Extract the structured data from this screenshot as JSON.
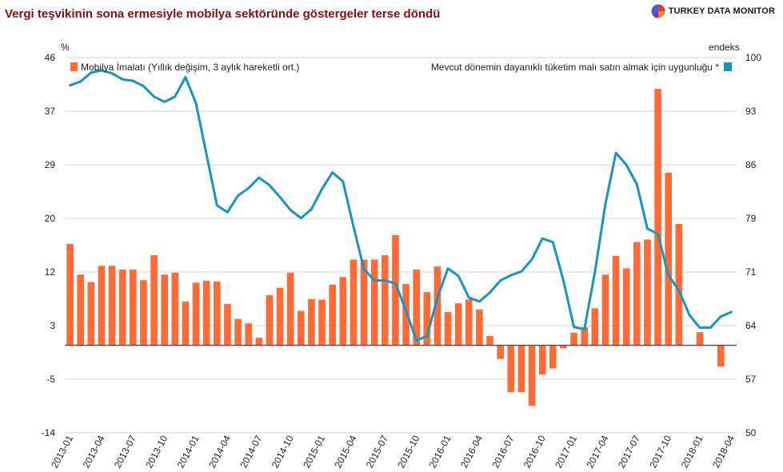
{
  "header": {
    "title": "Vergi teşvikinin sona ermesiyle mobilya sektöründe göstergeler terse döndü",
    "brand": "TURKEY DATA MONITOR"
  },
  "colors": {
    "bar": "#ff6b36",
    "line": "#1a93c0",
    "title": "#8b0d12"
  },
  "chart_data": {
    "type": "bar+line",
    "title": "Vergi teşvikinin sona ermesiyle mobilya sektöründe göstergeler terse döndü",
    "left_axis_label": "%",
    "right_axis_label": "endeks",
    "left_ticks": [
      "46",
      "37",
      "29",
      "20",
      "12",
      "3",
      "-5",
      "-14"
    ],
    "right_ticks": [
      "100",
      "93",
      "86",
      "79",
      "71",
      "64",
      "57",
      "50"
    ],
    "left_range": [
      -14,
      46
    ],
    "right_range": [
      50,
      100
    ],
    "x_tick_labels": [
      "2013-01",
      "2013-04",
      "2013-07",
      "2013-10",
      "2014-01",
      "2014-04",
      "2014-07",
      "2014-10",
      "2015-01",
      "2015-04",
      "2015-07",
      "2015-10",
      "2016-01",
      "2016-04",
      "2016-07",
      "2016-10",
      "2017-01",
      "2017-04",
      "2017-07",
      "2017-10",
      "2018-01",
      "2018-04"
    ],
    "months": [
      "2013-01",
      "2013-02",
      "2013-03",
      "2013-04",
      "2013-05",
      "2013-06",
      "2013-07",
      "2013-08",
      "2013-09",
      "2013-10",
      "2013-11",
      "2013-12",
      "2014-01",
      "2014-02",
      "2014-03",
      "2014-04",
      "2014-05",
      "2014-06",
      "2014-07",
      "2014-08",
      "2014-09",
      "2014-10",
      "2014-11",
      "2014-12",
      "2015-01",
      "2015-02",
      "2015-03",
      "2015-04",
      "2015-05",
      "2015-06",
      "2015-07",
      "2015-08",
      "2015-09",
      "2015-10",
      "2015-11",
      "2015-12",
      "2016-01",
      "2016-02",
      "2016-03",
      "2016-04",
      "2016-05",
      "2016-06",
      "2016-07",
      "2016-08",
      "2016-09",
      "2016-10",
      "2016-11",
      "2016-12",
      "2017-01",
      "2017-02",
      "2017-03",
      "2017-04",
      "2017-05",
      "2017-06",
      "2017-07",
      "2017-08",
      "2017-09",
      "2017-10",
      "2017-11",
      "2017-12",
      "2018-01",
      "2018-02",
      "2018-03",
      "2018-04"
    ],
    "series": [
      {
        "name": "Mobilya İmalatı (Yıllık değişim, 3 aylık hareketli ort.)",
        "type": "bar",
        "axis": "left",
        "values": [
          16.2,
          11.3,
          10.1,
          12.7,
          12.7,
          12.1,
          12.1,
          10.4,
          14.4,
          11.3,
          11.6,
          7.0,
          10.0,
          10.3,
          10.2,
          6.6,
          4.2,
          3.5,
          1.2,
          8.0,
          9.2,
          11.6,
          5.5,
          7.4,
          7.3,
          9.7,
          10.9,
          13.7,
          13.7,
          13.7,
          14.4,
          17.6,
          9.8,
          12.1,
          8.5,
          12.6,
          5.3,
          6.7,
          7.3,
          5.7,
          1.5,
          -2.2,
          -7.5,
          -7.5,
          -9.7,
          -4.7,
          -3.7,
          -0.5,
          2.0,
          2.9,
          5.9,
          11.3,
          14.3,
          12.3,
          16.5,
          16.9,
          41.0,
          27.6,
          19.4,
          0.0,
          2.1,
          0.0,
          -3.4,
          0.0
        ]
      },
      {
        "name": "Mevcut dönemin dayanıklı tüketim malı satın almak için uygunluğu *",
        "type": "line",
        "axis": "right",
        "values": [
          96.3,
          96.8,
          98.0,
          98.3,
          97.9,
          97.1,
          96.9,
          96.2,
          94.8,
          94.1,
          94.8,
          97.4,
          93.9,
          87.1,
          80.3,
          79.4,
          81.6,
          82.6,
          84.0,
          83.0,
          81.4,
          79.7,
          78.6,
          79.8,
          82.5,
          84.7,
          83.5,
          77.5,
          71.8,
          70.3,
          70.3,
          69.9,
          66.3,
          62.3,
          62.9,
          68.0,
          71.9,
          70.9,
          68.0,
          67.5,
          68.7,
          70.3,
          71.0,
          71.5,
          73.1,
          75.9,
          75.4,
          70.3,
          64.1,
          63.8,
          71.4,
          80.5,
          87.3,
          85.7,
          83.1,
          77.2,
          76.5,
          71.0,
          69.0,
          65.7,
          64.0,
          64.0,
          65.5,
          66.1
        ]
      }
    ]
  }
}
